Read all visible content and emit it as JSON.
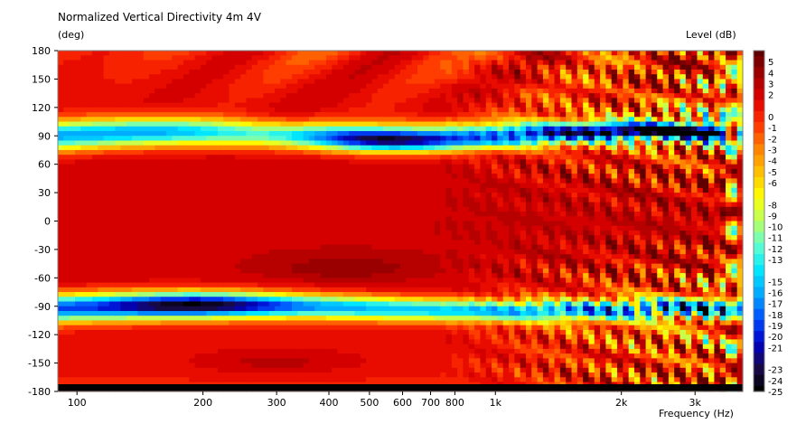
{
  "chart_data": {
    "type": "heatmap",
    "title": "Normalized Vertical Directivity 4m 4V",
    "ylabel": "(deg)",
    "xlabel": "Frequency  (Hz)",
    "colorbar_label": "Level  (dB)",
    "x_scale": "log",
    "xlim": [
      90,
      3900
    ],
    "ylim": [
      -180,
      180
    ],
    "x_ticks": [
      {
        "value": 100,
        "label": "100"
      },
      {
        "value": 200,
        "label": "200"
      },
      {
        "value": 300,
        "label": "300"
      },
      {
        "value": 400,
        "label": "400"
      },
      {
        "value": 500,
        "label": "500"
      },
      {
        "value": 600,
        "label": "600"
      },
      {
        "value": 700,
        "label": "700"
      },
      {
        "value": 800,
        "label": "800"
      },
      {
        "value": 1000,
        "label": "1k"
      },
      {
        "value": 2000,
        "label": "2k"
      },
      {
        "value": 3000,
        "label": "3k"
      }
    ],
    "y_ticks": [
      180,
      150,
      120,
      90,
      60,
      30,
      0,
      -30,
      -60,
      -90,
      -120,
      -150,
      -180
    ],
    "colorbar_range": [
      -25,
      6
    ],
    "colorbar_ticks": [
      {
        "value": 5,
        "label": "5"
      },
      {
        "value": 4,
        "label": "4"
      },
      {
        "value": 3,
        "label": "3"
      },
      {
        "value": 2,
        "label": "2"
      },
      {
        "value": 0,
        "label": "0"
      },
      {
        "value": -1,
        "label": "-1"
      },
      {
        "value": -2,
        "label": "-2"
      },
      {
        "value": -3,
        "label": "-3"
      },
      {
        "value": -4,
        "label": "-4"
      },
      {
        "value": -5,
        "label": "-5"
      },
      {
        "value": -6,
        "label": "-6"
      },
      {
        "value": -8,
        "label": "-8"
      },
      {
        "value": -9,
        "label": "-9"
      },
      {
        "value": -10,
        "label": "-10"
      },
      {
        "value": -11,
        "label": "-11"
      },
      {
        "value": -12,
        "label": "-12"
      },
      {
        "value": -13,
        "label": "-13"
      },
      {
        "value": -15,
        "label": "-15"
      },
      {
        "value": -16,
        "label": "-16"
      },
      {
        "value": -17,
        "label": "-17"
      },
      {
        "value": -18,
        "label": "-18"
      },
      {
        "value": -19,
        "label": "-19"
      },
      {
        "value": -20,
        "label": "-20"
      },
      {
        "value": -21,
        "label": "-21"
      },
      {
        "value": -23,
        "label": "-23"
      },
      {
        "value": -24,
        "label": "-24"
      },
      {
        "value": -25,
        "label": "-25"
      }
    ],
    "colormap": [
      "#000000",
      "#1a0a4a",
      "#0000c8",
      "#0050ff",
      "#00a8ff",
      "#00e8ff",
      "#60ffd0",
      "#b8ff60",
      "#ffff00",
      "#ffc000",
      "#ff8000",
      "#ff3000",
      "#e00000",
      "#a00000",
      "#600000"
    ],
    "grid": false,
    "legend": "colorbar-right",
    "series_note_levels_db": {
      "lobe_plus90_null": -24,
      "lobe_minus90_null": -25,
      "on_axis": 0
    }
  }
}
